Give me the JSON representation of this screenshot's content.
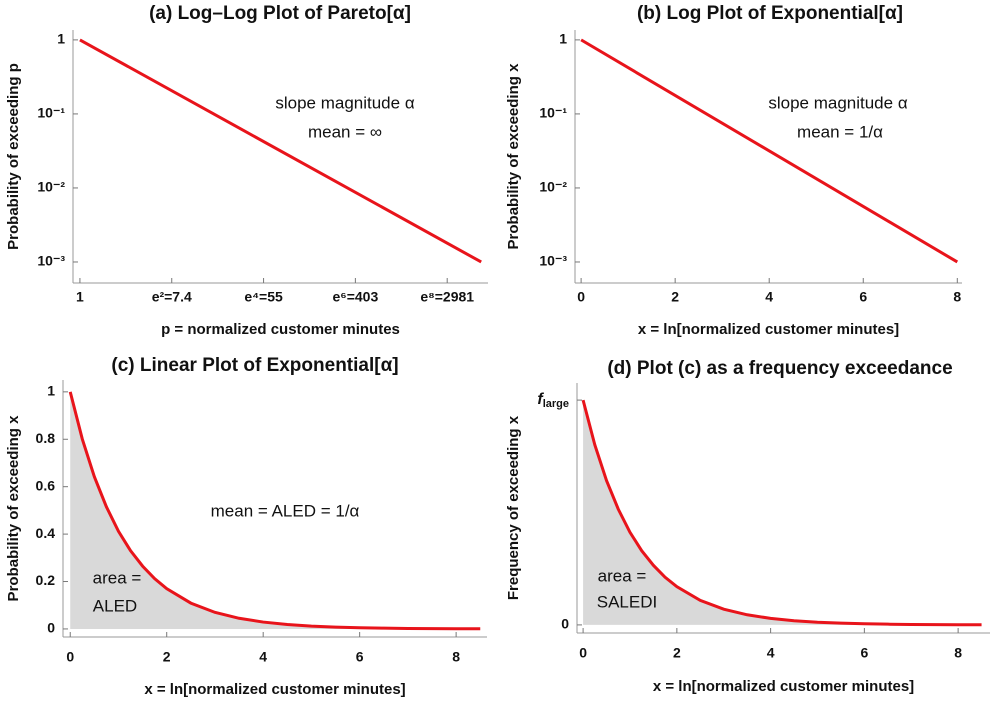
{
  "chart_data": [
    {
      "type": "line",
      "title": "(a) Log–Log Plot of Pareto[α]",
      "xlabel": "p = normalized customer minutes",
      "ylabel": "Probability of exceeding p",
      "log_x": true,
      "log_y": true,
      "x": [
        1,
        6250
      ],
      "series": [
        {
          "color": "#e8141b",
          "values": [
            1,
            0.001
          ]
        }
      ],
      "xlim": [
        0.86,
        7250
      ],
      "ylim": [
        0.00052,
        1.36
      ],
      "xticks": [
        1,
        {
          "value": 7.389,
          "label": "e²=7.4"
        },
        {
          "value": 54.598,
          "label": "e⁴=55"
        },
        {
          "value": 403.43,
          "label": "e⁶=403"
        },
        {
          "value": 2980.96,
          "label": "e⁸=2981"
        }
      ],
      "yticks": [
        1,
        {
          "value": 0.1,
          "label": "10⁻¹"
        },
        {
          "value": 0.01,
          "label": "10⁻²"
        },
        {
          "value": 0.001,
          "label": "10⁻³"
        }
      ],
      "annotations": [
        "slope magnitude α",
        "mean = ∞"
      ]
    },
    {
      "type": "line",
      "title": "(b) Log Plot of Exponential[α]",
      "xlabel": "x = ln[normalized customer minutes]",
      "ylabel": "Probability of exceeding x",
      "log_x": false,
      "log_y": true,
      "x": [
        0,
        8
      ],
      "series": [
        {
          "color": "#e8141b",
          "values": [
            1,
            0.001
          ]
        }
      ],
      "xlim": [
        -0.13,
        8.1
      ],
      "ylim": [
        0.00052,
        1.36
      ],
      "xticks": [
        0,
        2,
        4,
        6,
        8
      ],
      "yticks": [
        1,
        {
          "value": 0.1,
          "label": "10⁻¹"
        },
        {
          "value": 0.01,
          "label": "10⁻²"
        },
        {
          "value": 0.001,
          "label": "10⁻³"
        }
      ],
      "annotations": [
        "slope magnitude α",
        "mean = 1/α"
      ]
    },
    {
      "type": "area",
      "title": "(c) Linear Plot of Exponential[α]",
      "xlabel": "x = ln[normalized customer minutes]",
      "ylabel": "Probability of exceeding x",
      "log_x": false,
      "log_y": false,
      "fill_color": "#d9d9d9",
      "x": [
        0,
        0.25,
        0.5,
        0.75,
        1,
        1.25,
        1.5,
        1.75,
        2,
        2.5,
        3,
        3.5,
        4,
        4.5,
        5,
        5.5,
        6,
        6.5,
        7,
        7.5,
        8,
        8.5
      ],
      "series": [
        {
          "color": "#e8141b",
          "values": [
            1,
            0.801,
            0.642,
            0.515,
            0.412,
            0.33,
            0.265,
            0.212,
            0.17,
            0.109,
            0.07,
            0.045,
            0.029,
            0.0185,
            0.0119,
            0.0077,
            0.0049,
            0.0032,
            0.002,
            0.0013,
            0.00083,
            0.00054
          ]
        }
      ],
      "xlim": [
        -0.15,
        8.64
      ],
      "ylim": [
        -0.034,
        1.05
      ],
      "xticks": [
        0,
        2,
        4,
        6,
        8
      ],
      "yticks": [
        0,
        0.2,
        0.4,
        0.6,
        0.8,
        1
      ],
      "annotations": [
        "mean = ALED = 1/α",
        "area =",
        "ALED"
      ]
    },
    {
      "type": "area",
      "title": "(d) Plot (c) as a frequency exceedance",
      "xlabel": "x = ln[normalized customer minutes]",
      "ylabel": "Frequency of exceeding x",
      "log_x": false,
      "log_y": false,
      "fill_color": "#d9d9d9",
      "x": [
        0,
        0.25,
        0.5,
        0.75,
        1,
        1.25,
        1.5,
        1.75,
        2,
        2.5,
        3,
        3.5,
        4,
        4.5,
        5,
        5.5,
        6,
        6.5,
        7,
        7.5,
        8,
        8.5
      ],
      "series": [
        {
          "color": "#e8141b",
          "values": [
            1,
            0.801,
            0.642,
            0.515,
            0.412,
            0.33,
            0.265,
            0.212,
            0.17,
            0.109,
            0.07,
            0.045,
            0.029,
            0.0185,
            0.0119,
            0.0077,
            0.0049,
            0.0032,
            0.002,
            0.0013,
            0.00083,
            0.00054
          ]
        }
      ],
      "xlim": [
        -0.13,
        8.68
      ],
      "ylim": [
        -0.036,
        1.076
      ],
      "xticks": [
        0,
        2,
        4,
        6,
        8
      ],
      "yticks": [
        0,
        {
          "value": 1,
          "label": "f",
          "subscript": "large"
        }
      ],
      "annotations": [
        "area =",
        "SALEDI"
      ]
    }
  ]
}
